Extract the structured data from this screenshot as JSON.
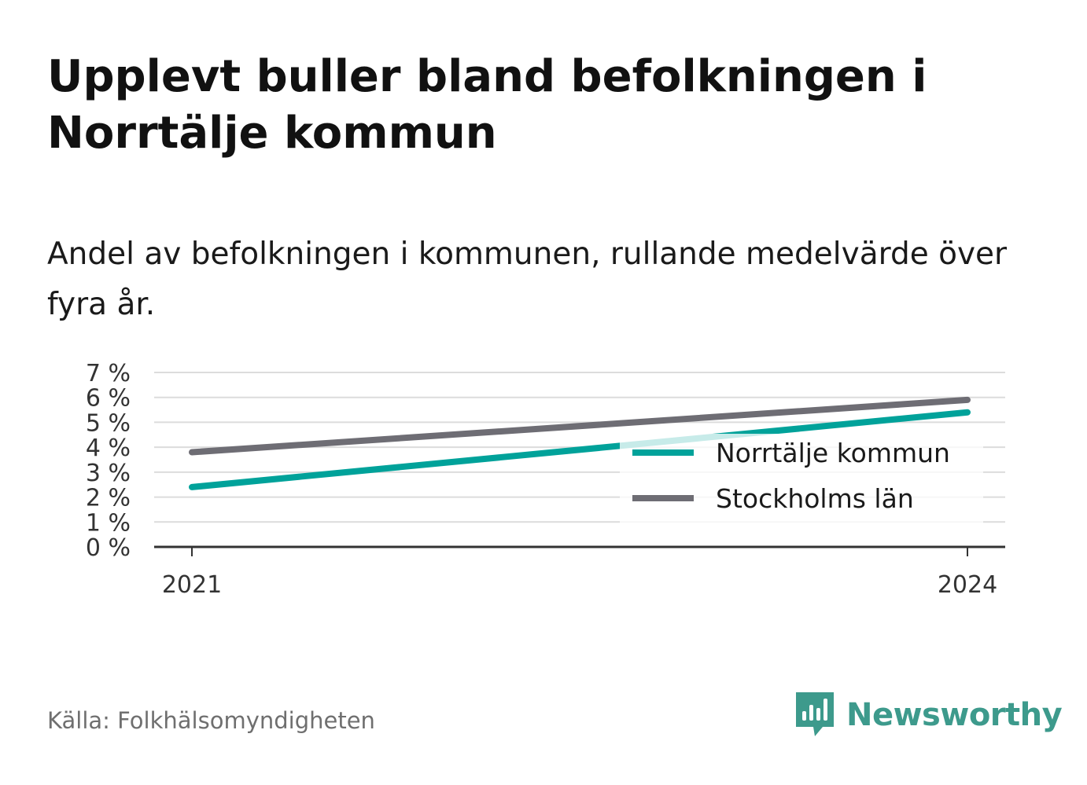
{
  "chart_data": {
    "type": "line",
    "title": "Upplevt buller bland befolkningen i Norrtälje kommun",
    "subtitle": "Andel av befolkningen i kommunen, rullande medelvärde över fyra år.",
    "xlabel": "",
    "ylabel": "",
    "x": [
      2021,
      2024
    ],
    "x_ticks": [
      "2021",
      "2024"
    ],
    "y_ticks": [
      "0 %",
      "1 %",
      "2 %",
      "3 %",
      "4 %",
      "5 %",
      "6 %",
      "7 %"
    ],
    "ylim": [
      0,
      7
    ],
    "grid": true,
    "legend_position": "bottom-right",
    "series": [
      {
        "name": "Norrtälje kommun",
        "values": [
          2.4,
          5.4
        ],
        "color": "#00a29a"
      },
      {
        "name": "Stockholms län",
        "values": [
          3.8,
          5.9
        ],
        "color": "#6e6d74"
      }
    ]
  },
  "footer": {
    "source": "Källa: Folkhälsomyndigheten",
    "brand": "Newsworthy"
  },
  "icons": {
    "brand": "newsworthy-logo-icon"
  },
  "colors": {
    "brand": "#3d9a8c",
    "grid": "#dcdcdc",
    "axis": "#333333"
  }
}
